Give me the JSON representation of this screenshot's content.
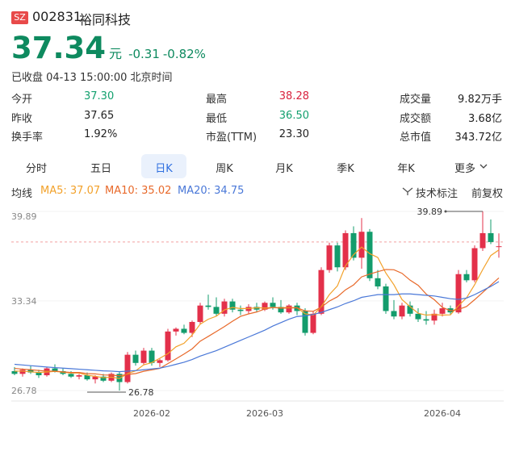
{
  "header": {
    "exchange": "SZ",
    "code": "002831",
    "name": "裕同科技"
  },
  "quote": {
    "price": "37.34",
    "unit": "元",
    "change": "-0.31",
    "change_pct": "-0.82%",
    "status": "已收盘 04-13 15:00:00 北京时间",
    "color": "#0e8a5f"
  },
  "stats": [
    [
      {
        "label": "今开",
        "value": "37.30",
        "color": "#13a06e"
      },
      {
        "label": "最高",
        "value": "38.28",
        "color": "#d8233f"
      },
      {
        "label": "成交量",
        "value": "9.82万手",
        "color": "#222222"
      }
    ],
    [
      {
        "label": "昨收",
        "value": "37.65",
        "color": "#222222"
      },
      {
        "label": "最低",
        "value": "36.50",
        "color": "#13a06e"
      },
      {
        "label": "成交额",
        "value": "3.68亿",
        "color": "#222222"
      }
    ],
    [
      {
        "label": "换手率",
        "value": "1.92%",
        "color": "#222222"
      },
      {
        "label": "市盈(TTM)",
        "value": "23.30",
        "color": "#222222"
      },
      {
        "label": "总市值",
        "value": "343.72亿",
        "color": "#222222"
      }
    ]
  ],
  "tabs": [
    {
      "label": "分时",
      "selected": false
    },
    {
      "label": "五日",
      "selected": false
    },
    {
      "label": "日K",
      "selected": true
    },
    {
      "label": "周K",
      "selected": false
    },
    {
      "label": "月K",
      "selected": false
    },
    {
      "label": "季K",
      "selected": false
    },
    {
      "label": "年K",
      "selected": false
    },
    {
      "label": "更多",
      "selected": false
    }
  ],
  "toolbar": {
    "indicator": "均线",
    "tools": [
      "技术标注",
      "前复权"
    ]
  },
  "chart_data": {
    "type": "candlestick",
    "categories": [
      null,
      null,
      null,
      null,
      null,
      null,
      null,
      null,
      null,
      null,
      null,
      null,
      null,
      null,
      null,
      null,
      null,
      "2026-02",
      null,
      null,
      null,
      null,
      null,
      null,
      null,
      null,
      null,
      null,
      null,
      null,
      null,
      "2026-03",
      null,
      null,
      null,
      null,
      null,
      null,
      null,
      null,
      null,
      null,
      null,
      null,
      null,
      null,
      null,
      null,
      null,
      null,
      null,
      null,
      null,
      "2026-04",
      null,
      null,
      null,
      null,
      null,
      null,
      null
    ],
    "open": [
      28.2,
      28.0,
      28.3,
      28.1,
      27.9,
      28.4,
      28.2,
      28.0,
      27.8,
      27.9,
      27.6,
      27.8,
      27.5,
      28.0,
      27.4,
      29.4,
      28.8,
      29.7,
      28.8,
      29.0,
      31.1,
      31.3,
      31.0,
      31.8,
      33.0,
      32.9,
      32.4,
      33.3,
      32.7,
      32.6,
      32.9,
      32.7,
      33.2,
      32.9,
      32.5,
      33.0,
      32.6,
      31.0,
      32.4,
      35.6,
      37.4,
      35.8,
      38.3,
      36.5,
      38.4,
      35.0,
      34.4,
      32.6,
      32.2,
      33.0,
      32.4,
      32.0,
      31.9,
      32.4,
      32.8,
      32.5,
      35.3,
      34.85,
      37.2,
      38.3,
      37.3
    ],
    "high": [
      28.5,
      28.4,
      28.6,
      28.3,
      28.5,
      28.7,
      28.4,
      28.2,
      28.0,
      28.1,
      27.9,
      28.0,
      28.1,
      28.2,
      29.6,
      29.7,
      29.9,
      29.9,
      29.1,
      31.3,
      31.4,
      31.6,
      31.9,
      33.2,
      33.8,
      33.6,
      33.5,
      33.5,
      33.0,
      33.1,
      33.2,
      33.3,
      33.6,
      33.4,
      33.1,
      33.2,
      32.8,
      32.6,
      35.8,
      37.6,
      37.6,
      38.5,
      38.8,
      39.4,
      38.6,
      35.6,
      34.6,
      33.4,
      33.2,
      33.3,
      32.8,
      32.6,
      32.7,
      33.2,
      33.0,
      35.6,
      35.6,
      37.4,
      39.89,
      39.3,
      38.28
    ],
    "low": [
      27.9,
      27.8,
      28.0,
      27.7,
      27.8,
      28.1,
      27.9,
      27.7,
      27.6,
      27.5,
      27.3,
      27.4,
      27.4,
      26.78,
      27.3,
      28.6,
      28.7,
      28.6,
      28.5,
      28.9,
      30.8,
      30.9,
      30.7,
      31.6,
      32.7,
      32.2,
      32.2,
      32.5,
      32.3,
      32.4,
      32.5,
      32.6,
      32.7,
      32.4,
      32.4,
      32.3,
      30.8,
      30.9,
      32.3,
      35.4,
      35.5,
      35.6,
      36.3,
      35.7,
      34.8,
      34.2,
      32.4,
      32.0,
      32.0,
      32.2,
      31.8,
      31.6,
      31.6,
      32.2,
      32.3,
      32.4,
      34.7,
      34.7,
      37.0,
      37.5,
      36.5
    ],
    "close": [
      28.0,
      28.3,
      28.1,
      27.9,
      28.4,
      28.2,
      28.0,
      27.8,
      27.9,
      27.6,
      27.8,
      27.5,
      28.0,
      27.4,
      29.4,
      28.8,
      29.7,
      28.8,
      29.0,
      31.1,
      31.3,
      31.0,
      31.8,
      33.0,
      32.9,
      32.4,
      33.3,
      32.7,
      32.6,
      32.9,
      32.7,
      33.2,
      32.9,
      32.5,
      33.0,
      32.6,
      31.0,
      32.4,
      35.6,
      37.4,
      35.8,
      38.3,
      36.5,
      38.4,
      35.0,
      34.4,
      32.6,
      32.2,
      33.0,
      32.4,
      32.0,
      31.9,
      32.4,
      32.8,
      32.5,
      35.3,
      34.85,
      37.2,
      38.3,
      37.65,
      37.34
    ],
    "series": [
      {
        "name": "MA5",
        "legend_label": "MA5: 37.07",
        "color": "#f2a12a",
        "values": [
          28.2,
          28.2,
          28.15,
          28.1,
          28.14,
          28.18,
          28.12,
          28.06,
          28.06,
          27.9,
          27.82,
          27.72,
          27.76,
          27.66,
          28.02,
          28.22,
          28.66,
          28.82,
          29.14,
          29.48,
          29.98,
          30.24,
          30.84,
          31.64,
          32.0,
          32.22,
          32.68,
          32.86,
          32.78,
          32.78,
          32.84,
          32.82,
          32.86,
          32.84,
          32.86,
          32.84,
          32.4,
          32.3,
          32.92,
          33.8,
          34.44,
          35.9,
          36.72,
          37.28,
          36.8,
          36.52,
          35.38,
          34.52,
          33.44,
          32.92,
          32.44,
          32.3,
          32.34,
          32.3,
          32.32,
          32.98,
          33.57,
          34.53,
          35.63,
          36.66,
          37.07
        ]
      },
      {
        "name": "MA10",
        "legend_label": "MA10: 35.02",
        "color": "#e8692a",
        "values": [
          28.4,
          28.35,
          28.3,
          28.25,
          28.2,
          28.2,
          28.15,
          28.1,
          28.1,
          28.02,
          28.0,
          27.92,
          27.91,
          27.86,
          27.96,
          28.02,
          28.19,
          28.29,
          28.4,
          28.75,
          29.1,
          29.45,
          29.83,
          30.39,
          30.74,
          31.1,
          31.46,
          31.85,
          32.21,
          32.39,
          32.53,
          32.75,
          32.86,
          32.81,
          32.82,
          32.84,
          32.61,
          32.58,
          32.88,
          33.33,
          33.64,
          34.15,
          34.51,
          35.1,
          35.3,
          35.48,
          35.64,
          35.62,
          35.36,
          34.86,
          34.48,
          33.84,
          33.43,
          32.87,
          32.62,
          32.71,
          32.93,
          33.43,
          33.96,
          34.49,
          35.02
        ]
      },
      {
        "name": "MA20",
        "legend_label": "MA20: 34.75",
        "color": "#4a78d8",
        "values": [
          28.7,
          28.65,
          28.6,
          28.55,
          28.5,
          28.46,
          28.42,
          28.38,
          28.34,
          28.3,
          28.26,
          28.22,
          28.2,
          28.16,
          28.2,
          28.24,
          28.3,
          28.36,
          28.42,
          28.55,
          28.7,
          28.85,
          29.05,
          29.3,
          29.5,
          29.7,
          29.95,
          30.2,
          30.45,
          30.7,
          30.95,
          31.2,
          31.5,
          31.75,
          32.0,
          32.2,
          32.25,
          32.35,
          32.5,
          32.7,
          32.9,
          33.15,
          33.35,
          33.6,
          33.7,
          33.8,
          33.8,
          33.8,
          33.85,
          33.85,
          33.8,
          33.75,
          33.7,
          33.6,
          33.5,
          33.45,
          33.55,
          33.8,
          34.1,
          34.4,
          34.75
        ]
      }
    ],
    "ylim": [
      26.78,
      39.89
    ],
    "yticks": [
      39.89,
      33.34,
      26.78
    ],
    "up_color": "#e3304a",
    "down_color": "#139c6c",
    "grid": true
  }
}
